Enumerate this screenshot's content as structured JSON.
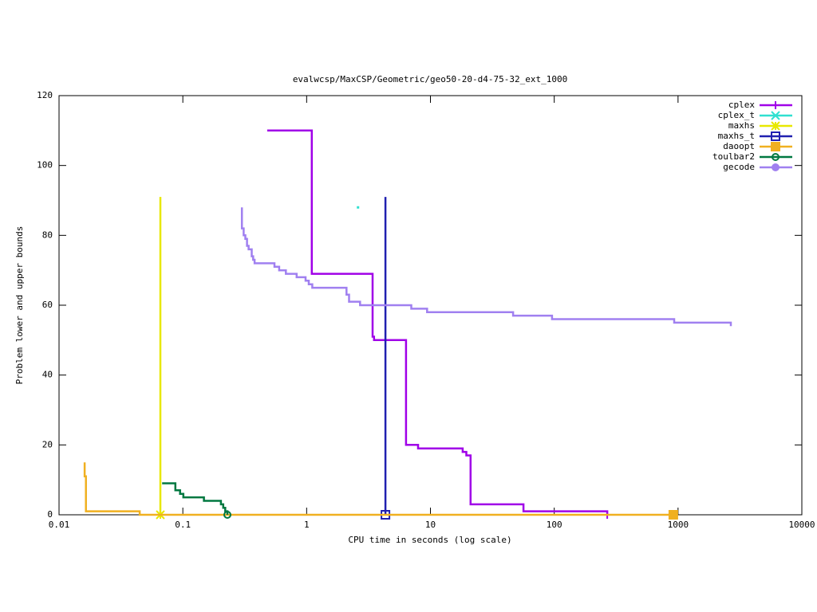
{
  "chart_data": {
    "type": "line",
    "title": "evalwcsp/MaxCSP/Geometric/geo50-20-d4-75-32_ext_1000",
    "x_label": "CPU time in seconds (log scale)",
    "y_label": "Problem lower and upper bounds",
    "x_scale": "log",
    "xlim": [
      0.01,
      10000
    ],
    "xticks": [
      0.01,
      0.1,
      1,
      10,
      100,
      1000,
      10000
    ],
    "ylim": [
      0,
      120
    ],
    "yticks": [
      0,
      20,
      40,
      60,
      80,
      100,
      120
    ],
    "legend": "top-right",
    "series": [
      {
        "name": "cplex",
        "color": "#a000e8",
        "marker": "plus",
        "end_marker": true,
        "x": [
          0.48,
          1.1,
          1.1,
          3.41,
          3.41,
          3.5,
          3.5,
          6.35,
          6.35,
          7.95,
          7.95,
          18.2,
          18.2,
          19.5,
          19.5,
          21.1,
          21.1,
          56.4,
          56.4,
          268,
          268
        ],
        "values": [
          110,
          110,
          69,
          69,
          51,
          51,
          50,
          50,
          20,
          20,
          19,
          19,
          18,
          18,
          17,
          17,
          3,
          3,
          1,
          1,
          0
        ]
      },
      {
        "name": "cplex_t",
        "color": "#30e0d0",
        "marker": "cross",
        "end_marker": false,
        "x": [
          2.6
        ],
        "values": [
          88
        ]
      },
      {
        "name": "maxhs",
        "color": "#e8e800",
        "marker": "star",
        "end_marker": true,
        "x": [
          0.0658,
          0.0658
        ],
        "values": [
          91,
          0
        ]
      },
      {
        "name": "maxhs_t",
        "color": "#2020b0",
        "marker": "square-open",
        "end_marker": true,
        "x": [
          4.33,
          4.33
        ],
        "values": [
          91,
          0
        ]
      },
      {
        "name": "daoopt",
        "color": "#f0b020",
        "marker": "square",
        "end_marker": true,
        "x": [
          0.0161,
          0.0161,
          0.0165,
          0.0165,
          0.0448,
          0.0448,
          916
        ],
        "values": [
          15,
          11,
          11,
          1,
          1,
          0,
          0
        ]
      },
      {
        "name": "toulbar2",
        "color": "#007840",
        "marker": "circle-open",
        "end_marker": true,
        "x": [
          0.068,
          0.087,
          0.087,
          0.095,
          0.095,
          0.101,
          0.101,
          0.148,
          0.148,
          0.203,
          0.203,
          0.212,
          0.212,
          0.22,
          0.22,
          0.229,
          0.229
        ],
        "values": [
          9,
          9,
          7,
          7,
          6,
          6,
          5,
          5,
          4,
          4,
          3,
          3,
          2,
          2,
          1,
          1,
          0
        ]
      },
      {
        "name": "gecode",
        "color": "#a080f0",
        "marker": "circle",
        "end_marker": false,
        "x": [
          0.3,
          0.3,
          0.31,
          0.31,
          0.32,
          0.32,
          0.33,
          0.33,
          0.34,
          0.34,
          0.36,
          0.36,
          0.37,
          0.37,
          0.38,
          0.38,
          0.55,
          0.55,
          0.6,
          0.6,
          0.68,
          0.68,
          0.83,
          0.83,
          0.98,
          0.98,
          1.04,
          1.04,
          1.11,
          1.11,
          2.1,
          2.1,
          2.2,
          2.2,
          2.7,
          2.7,
          7.0,
          7.0,
          9.4,
          9.4,
          46.5,
          46.5,
          96,
          96,
          931,
          931,
          2670,
          2670
        ],
        "values": [
          88,
          82,
          82,
          80,
          80,
          79,
          79,
          77,
          77,
          76,
          76,
          74,
          74,
          73,
          73,
          72,
          72,
          71,
          71,
          70,
          70,
          69,
          69,
          68,
          68,
          67,
          67,
          66,
          66,
          65,
          65,
          63,
          63,
          61,
          61,
          60,
          60,
          59,
          59,
          58,
          58,
          57,
          57,
          56,
          56,
          55,
          55,
          54
        ]
      }
    ]
  }
}
